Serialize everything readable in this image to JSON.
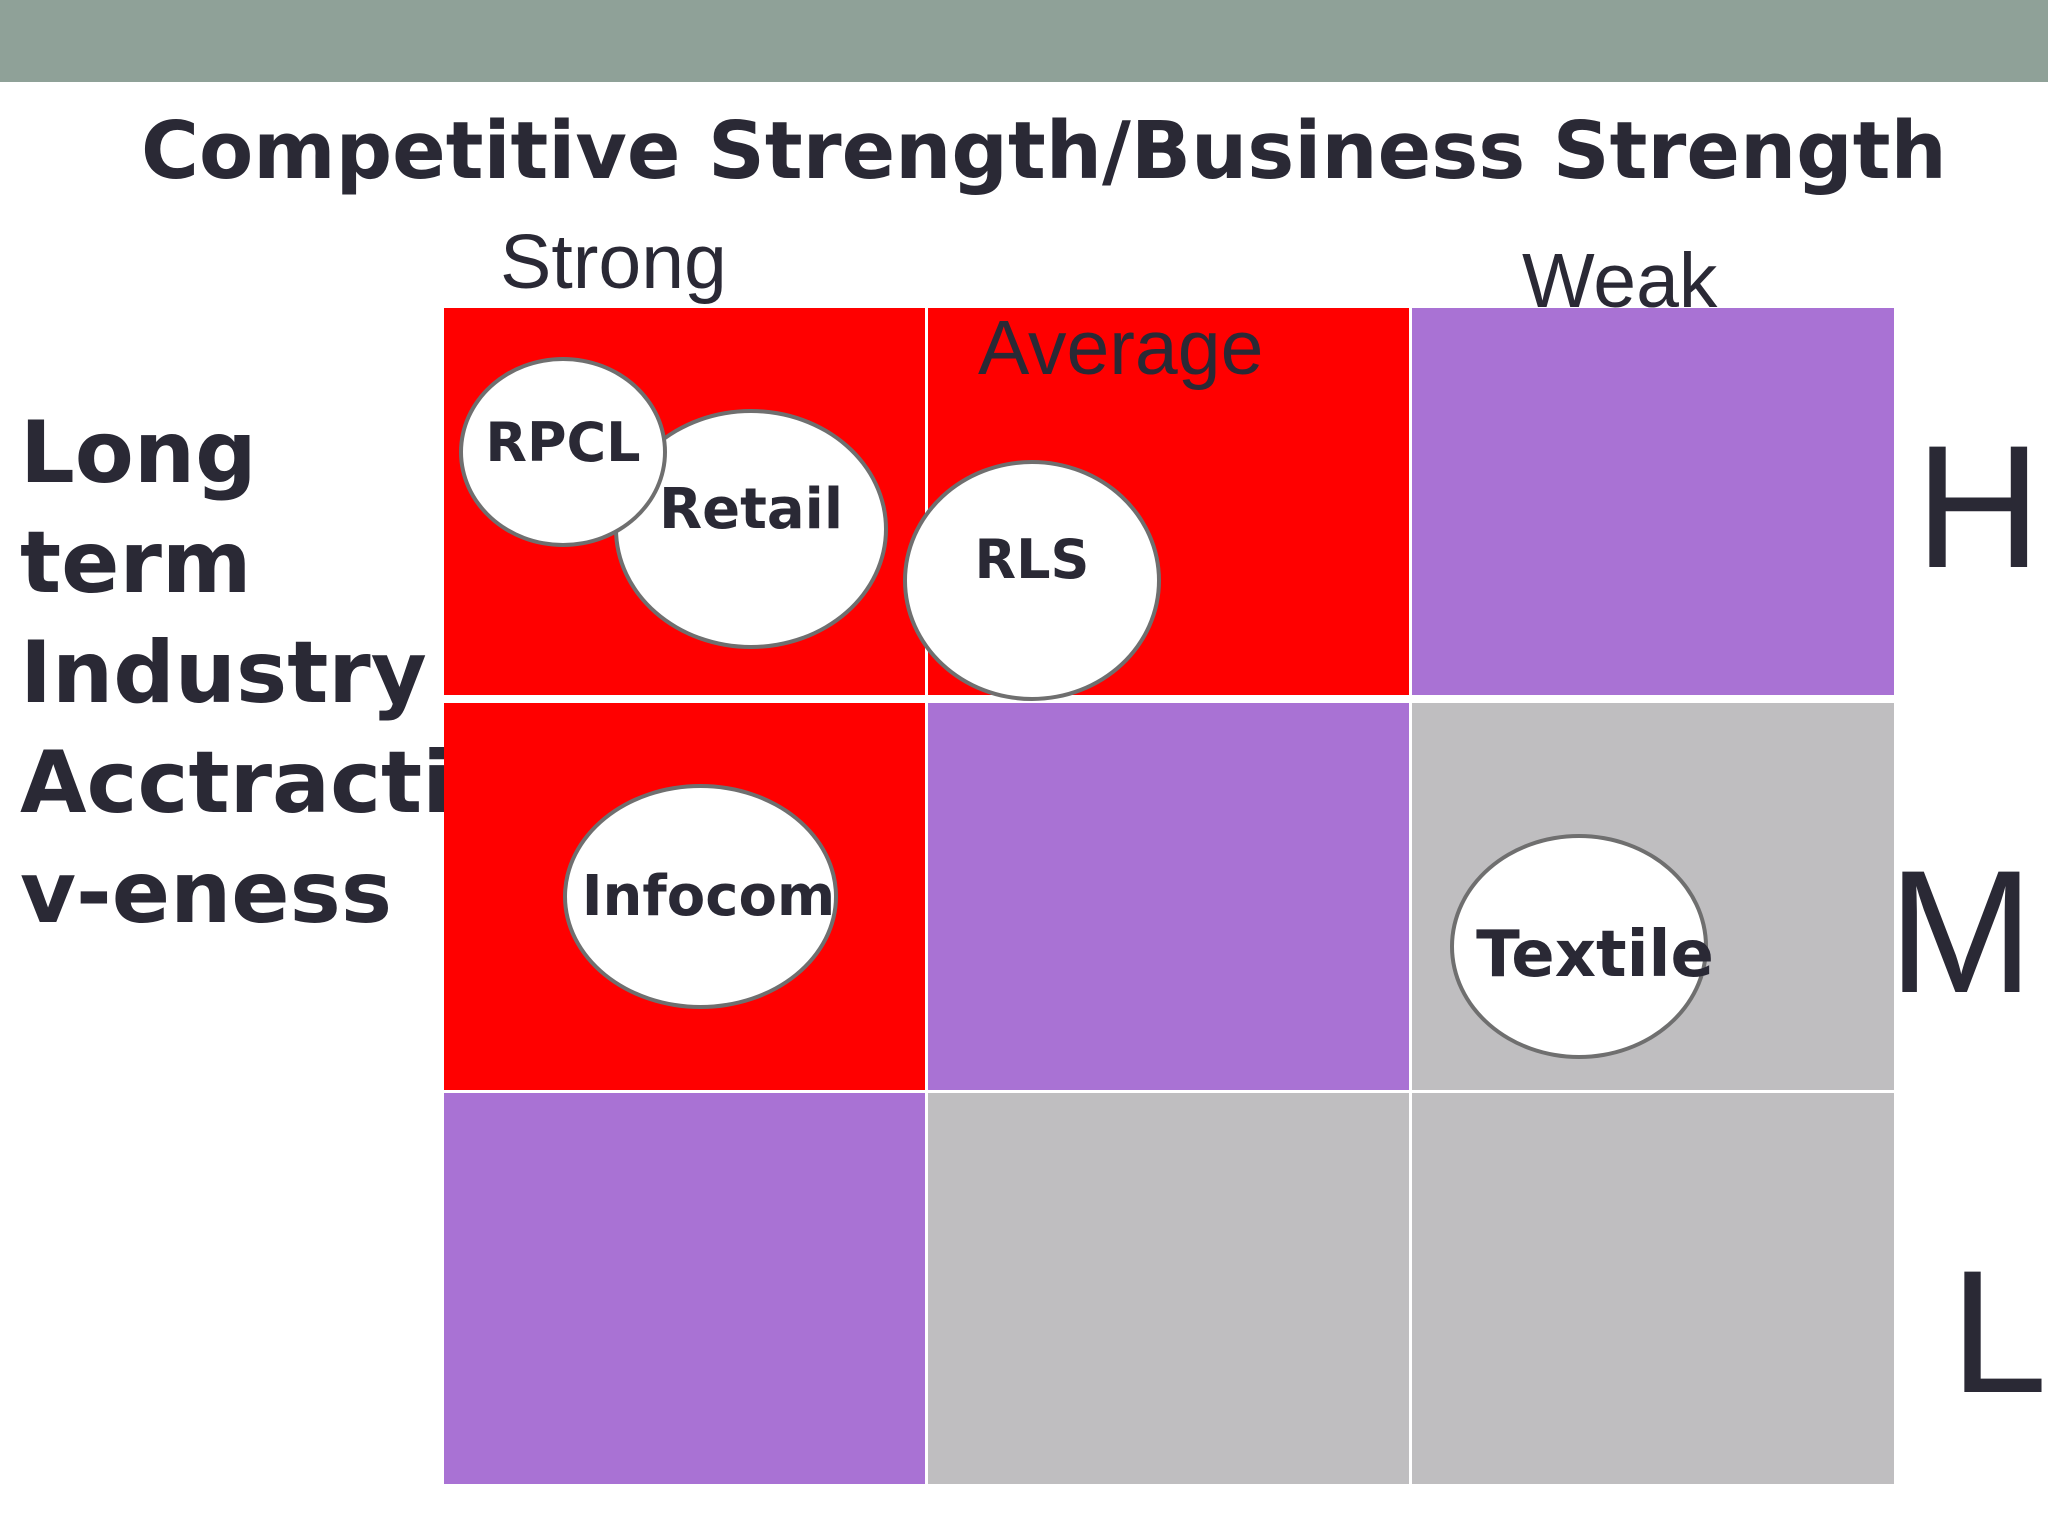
{
  "title": "Competitive Strength/Business Strength",
  "columns": {
    "strong": "Strong",
    "average": "Average",
    "weak": "Weak"
  },
  "y_axis": {
    "lines": [
      "Long",
      "term",
      "Industry",
      "Acctracti",
      "v-eness"
    ]
  },
  "rows": {
    "high": "H",
    "medium": "M",
    "low": "L"
  },
  "colors": {
    "header_bar": "#8fa198",
    "red": "#ff0000",
    "purple": "#a972d4",
    "gray": "#bfbec0"
  },
  "grid": [
    [
      "red",
      "red",
      "purple"
    ],
    [
      "red",
      "purple",
      "gray"
    ],
    [
      "purple",
      "gray",
      "gray"
    ]
  ],
  "bubbles": {
    "rpcl": "RPCL",
    "retail": "Retail",
    "rls": "RLS",
    "infocom": "Infocom",
    "textile": "Textile"
  }
}
